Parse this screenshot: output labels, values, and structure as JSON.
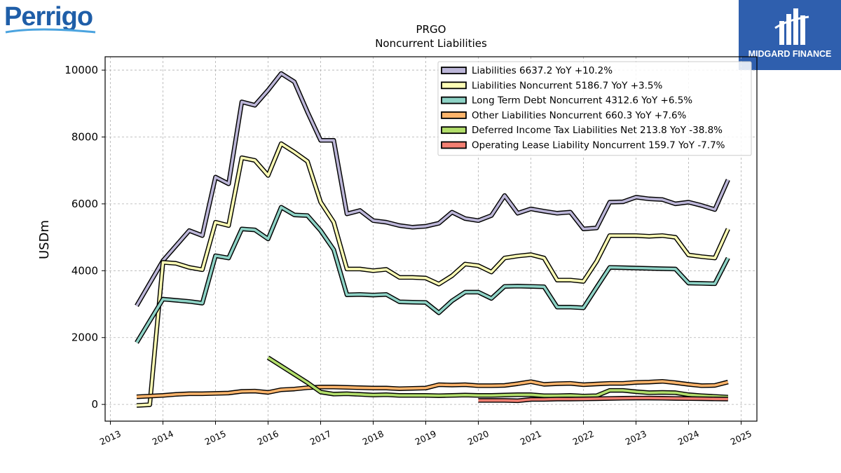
{
  "brand_left": "Perrigo",
  "brand_right": "MIDGARD FINANCE",
  "chart_data": {
    "type": "line",
    "title": "PRGO",
    "subtitle": "Noncurrent  Liabilities",
    "xlabel": "",
    "ylabel": "USDm",
    "xlim": [
      2012.9,
      2025.3
    ],
    "ylim": [
      -500,
      10400
    ],
    "x_ticks": [
      "2013",
      "2014",
      "2015",
      "2016",
      "2017",
      "2018",
      "2019",
      "2020",
      "2021",
      "2022",
      "2023",
      "2024",
      "2025"
    ],
    "y_ticks": [
      "0",
      "2000",
      "4000",
      "6000",
      "8000",
      "10000"
    ],
    "grid": true,
    "legend_position": "top-right",
    "series": [
      {
        "name": "Liabilities",
        "legend_label": "Liabilities  6637.2 YoY +10.2%",
        "color": "#bcb6d8",
        "points": [
          [
            2013.5,
            2950
          ],
          [
            2014.0,
            4300
          ],
          [
            2014.5,
            5200
          ],
          [
            2014.75,
            5050
          ],
          [
            2015.0,
            6800
          ],
          [
            2015.25,
            6600
          ],
          [
            2015.5,
            9050
          ],
          [
            2015.75,
            8950
          ],
          [
            2016.0,
            9400
          ],
          [
            2016.25,
            9900
          ],
          [
            2016.5,
            9650
          ],
          [
            2016.75,
            8750
          ],
          [
            2017.0,
            7900
          ],
          [
            2017.25,
            7900
          ],
          [
            2017.5,
            5700
          ],
          [
            2017.75,
            5800
          ],
          [
            2018.0,
            5500
          ],
          [
            2018.25,
            5450
          ],
          [
            2018.5,
            5350
          ],
          [
            2018.75,
            5300
          ],
          [
            2019.0,
            5330
          ],
          [
            2019.25,
            5420
          ],
          [
            2019.5,
            5750
          ],
          [
            2019.75,
            5560
          ],
          [
            2020.0,
            5500
          ],
          [
            2020.25,
            5650
          ],
          [
            2020.5,
            6250
          ],
          [
            2020.75,
            5720
          ],
          [
            2021.0,
            5850
          ],
          [
            2021.25,
            5780
          ],
          [
            2021.5,
            5720
          ],
          [
            2021.75,
            5750
          ],
          [
            2022.0,
            5250
          ],
          [
            2022.25,
            5280
          ],
          [
            2022.5,
            6050
          ],
          [
            2022.75,
            6060
          ],
          [
            2023.0,
            6200
          ],
          [
            2023.25,
            6150
          ],
          [
            2023.5,
            6130
          ],
          [
            2023.75,
            6000
          ],
          [
            2024.0,
            6050
          ],
          [
            2024.25,
            5950
          ],
          [
            2024.5,
            5830
          ],
          [
            2024.75,
            6720
          ]
        ]
      },
      {
        "name": "Liabilities Noncurrent",
        "legend_label": "Liabilities Noncurrent  5186.7 YoY +3.5%",
        "color": "#fdfdb5",
        "points": [
          [
            2013.5,
            -30
          ],
          [
            2013.75,
            -10
          ],
          [
            2014.0,
            4250
          ],
          [
            2014.25,
            4220
          ],
          [
            2014.5,
            4100
          ],
          [
            2014.75,
            4030
          ],
          [
            2015.0,
            5450
          ],
          [
            2015.25,
            5350
          ],
          [
            2015.5,
            7380
          ],
          [
            2015.75,
            7300
          ],
          [
            2016.0,
            6850
          ],
          [
            2016.25,
            7800
          ],
          [
            2016.5,
            7550
          ],
          [
            2016.75,
            7270
          ],
          [
            2017.0,
            6050
          ],
          [
            2017.25,
            5450
          ],
          [
            2017.5,
            4050
          ],
          [
            2017.75,
            4050
          ],
          [
            2018.0,
            4000
          ],
          [
            2018.25,
            4040
          ],
          [
            2018.5,
            3800
          ],
          [
            2018.75,
            3800
          ],
          [
            2019.0,
            3780
          ],
          [
            2019.25,
            3600
          ],
          [
            2019.5,
            3850
          ],
          [
            2019.75,
            4200
          ],
          [
            2020.0,
            4150
          ],
          [
            2020.25,
            3960
          ],
          [
            2020.5,
            4380
          ],
          [
            2020.75,
            4440
          ],
          [
            2021.0,
            4480
          ],
          [
            2021.25,
            4380
          ],
          [
            2021.5,
            3720
          ],
          [
            2021.75,
            3720
          ],
          [
            2022.0,
            3680
          ],
          [
            2022.25,
            4280
          ],
          [
            2022.5,
            5050
          ],
          [
            2022.75,
            5050
          ],
          [
            2023.0,
            5050
          ],
          [
            2023.25,
            5030
          ],
          [
            2023.5,
            5050
          ],
          [
            2023.75,
            5000
          ],
          [
            2024.0,
            4470
          ],
          [
            2024.25,
            4420
          ],
          [
            2024.5,
            4380
          ],
          [
            2024.75,
            5250
          ]
        ]
      },
      {
        "name": "Long Term Debt Noncurrent",
        "legend_label": "Long Term Debt Noncurrent  4312.6 YoY +6.5%",
        "color": "#8ed3c6",
        "points": [
          [
            2013.5,
            1850
          ],
          [
            2014.0,
            3150
          ],
          [
            2014.5,
            3080
          ],
          [
            2014.75,
            3030
          ],
          [
            2015.0,
            4450
          ],
          [
            2015.25,
            4380
          ],
          [
            2015.5,
            5250
          ],
          [
            2015.75,
            5220
          ],
          [
            2016.0,
            4950
          ],
          [
            2016.25,
            5900
          ],
          [
            2016.5,
            5670
          ],
          [
            2016.75,
            5650
          ],
          [
            2017.0,
            5200
          ],
          [
            2017.25,
            4630
          ],
          [
            2017.5,
            3280
          ],
          [
            2017.75,
            3290
          ],
          [
            2018.0,
            3270
          ],
          [
            2018.25,
            3290
          ],
          [
            2018.5,
            3070
          ],
          [
            2018.75,
            3060
          ],
          [
            2019.0,
            3050
          ],
          [
            2019.25,
            2740
          ],
          [
            2019.5,
            3100
          ],
          [
            2019.75,
            3360
          ],
          [
            2020.0,
            3360
          ],
          [
            2020.25,
            3170
          ],
          [
            2020.5,
            3530
          ],
          [
            2020.75,
            3540
          ],
          [
            2021.0,
            3530
          ],
          [
            2021.25,
            3520
          ],
          [
            2021.5,
            2910
          ],
          [
            2021.75,
            2910
          ],
          [
            2022.0,
            2890
          ],
          [
            2022.25,
            3500
          ],
          [
            2022.5,
            4100
          ],
          [
            2022.75,
            4090
          ],
          [
            2023.0,
            4080
          ],
          [
            2023.25,
            4070
          ],
          [
            2023.5,
            4060
          ],
          [
            2023.75,
            4050
          ],
          [
            2024.0,
            3630
          ],
          [
            2024.25,
            3620
          ],
          [
            2024.5,
            3610
          ],
          [
            2024.75,
            4380
          ]
        ]
      },
      {
        "name": "Other Liabilities Noncurrent",
        "legend_label": "Other Liabilities Noncurrent  660.3 YoY +7.6%",
        "color": "#fdb46b",
        "points": [
          [
            2013.5,
            230
          ],
          [
            2014.0,
            270
          ],
          [
            2014.25,
            300
          ],
          [
            2014.5,
            320
          ],
          [
            2014.75,
            320
          ],
          [
            2015.0,
            330
          ],
          [
            2015.25,
            340
          ],
          [
            2015.5,
            390
          ],
          [
            2015.75,
            400
          ],
          [
            2016.0,
            360
          ],
          [
            2016.25,
            440
          ],
          [
            2016.5,
            460
          ],
          [
            2016.75,
            500
          ],
          [
            2017.0,
            520
          ],
          [
            2017.25,
            520
          ],
          [
            2017.5,
            510
          ],
          [
            2017.75,
            500
          ],
          [
            2018.0,
            490
          ],
          [
            2018.25,
            490
          ],
          [
            2018.5,
            470
          ],
          [
            2018.75,
            480
          ],
          [
            2019.0,
            490
          ],
          [
            2019.25,
            590
          ],
          [
            2019.5,
            580
          ],
          [
            2019.75,
            590
          ],
          [
            2020.0,
            560
          ],
          [
            2020.25,
            560
          ],
          [
            2020.5,
            570
          ],
          [
            2020.75,
            620
          ],
          [
            2021.0,
            680
          ],
          [
            2021.25,
            600
          ],
          [
            2021.5,
            620
          ],
          [
            2021.75,
            630
          ],
          [
            2022.0,
            590
          ],
          [
            2022.25,
            610
          ],
          [
            2022.5,
            630
          ],
          [
            2022.75,
            630
          ],
          [
            2023.0,
            660
          ],
          [
            2023.25,
            670
          ],
          [
            2023.5,
            690
          ],
          [
            2023.75,
            650
          ],
          [
            2024.0,
            600
          ],
          [
            2024.25,
            560
          ],
          [
            2024.5,
            570
          ],
          [
            2024.75,
            670
          ]
        ]
      },
      {
        "name": "Deferred Income Tax Liabilities Net",
        "legend_label": "Deferred Income Tax Liabilities Net  213.8 YoY -38.8%",
        "color": "#b2de6b",
        "points": [
          [
            2016.0,
            1400
          ],
          [
            2016.25,
            1150
          ],
          [
            2016.5,
            900
          ],
          [
            2016.75,
            650
          ],
          [
            2017.0,
            370
          ],
          [
            2017.25,
            310
          ],
          [
            2017.5,
            320
          ],
          [
            2017.75,
            300
          ],
          [
            2018.0,
            280
          ],
          [
            2018.25,
            290
          ],
          [
            2018.5,
            270
          ],
          [
            2018.75,
            270
          ],
          [
            2019.0,
            270
          ],
          [
            2019.25,
            260
          ],
          [
            2019.5,
            270
          ],
          [
            2019.75,
            280
          ],
          [
            2020.0,
            270
          ],
          [
            2020.25,
            270
          ],
          [
            2020.5,
            280
          ],
          [
            2020.75,
            290
          ],
          [
            2021.0,
            290
          ],
          [
            2021.25,
            260
          ],
          [
            2021.5,
            260
          ],
          [
            2021.75,
            270
          ],
          [
            2022.0,
            250
          ],
          [
            2022.25,
            260
          ],
          [
            2022.5,
            420
          ],
          [
            2022.75,
            420
          ],
          [
            2023.0,
            380
          ],
          [
            2023.25,
            350
          ],
          [
            2023.5,
            360
          ],
          [
            2023.75,
            350
          ],
          [
            2024.0,
            290
          ],
          [
            2024.25,
            260
          ],
          [
            2024.5,
            240
          ],
          [
            2024.75,
            220
          ]
        ]
      },
      {
        "name": "Operating Lease Liability Noncurrent",
        "legend_label": "Operating Lease Liability Noncurrent  159.7 YoY -7.7%",
        "color": "#f47f72",
        "points": [
          [
            2020.0,
            120
          ],
          [
            2020.25,
            120
          ],
          [
            2020.5,
            120
          ],
          [
            2020.75,
            110
          ],
          [
            2021.0,
            150
          ],
          [
            2021.25,
            150
          ],
          [
            2021.5,
            160
          ],
          [
            2021.75,
            160
          ],
          [
            2022.0,
            165
          ],
          [
            2022.25,
            170
          ],
          [
            2022.5,
            180
          ],
          [
            2022.75,
            185
          ],
          [
            2023.0,
            190
          ],
          [
            2023.25,
            190
          ],
          [
            2023.5,
            185
          ],
          [
            2023.75,
            180
          ],
          [
            2024.0,
            175
          ],
          [
            2024.25,
            170
          ],
          [
            2024.5,
            165
          ],
          [
            2024.75,
            160
          ]
        ]
      }
    ]
  }
}
